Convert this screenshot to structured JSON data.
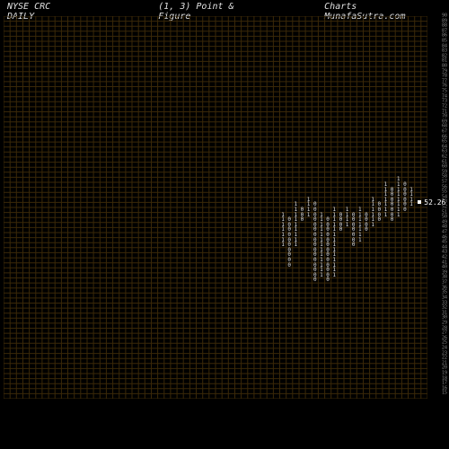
{
  "header": {
    "left": "NYSE CRC DAILY",
    "mid": "(1, 3) Point & Figure",
    "right": "Charts MunafaSutra.com"
  },
  "chart": {
    "type": "point-and-figure",
    "background_color": "#000000",
    "grid_color": "#3a2808",
    "text_color": "#e0e0e0",
    "axis_text_color": "#888888",
    "font_family": "monospace",
    "grid": {
      "cols": 66,
      "rows": 76,
      "cell_w": 7.1,
      "cell_h": 5.5
    },
    "yaxis": {
      "max": 90,
      "min": 15,
      "step": 1
    },
    "last_price": {
      "value": "52.26",
      "row": 37
    },
    "columns": [
      {
        "c": 43,
        "sym": "1",
        "from": 39,
        "to": 45
      },
      {
        "c": 44,
        "sym": "0",
        "from": 40,
        "to": 49
      },
      {
        "c": 45,
        "sym": "1",
        "from": 37,
        "to": 45
      },
      {
        "c": 46,
        "sym": "0",
        "from": 38,
        "to": 40
      },
      {
        "c": 47,
        "sym": "1",
        "from": 36,
        "to": 39
      },
      {
        "c": 48,
        "sym": "0",
        "from": 37,
        "to": 52
      },
      {
        "c": 49,
        "sym": "1",
        "from": 39,
        "to": 51
      },
      {
        "c": 50,
        "sym": "0",
        "from": 40,
        "to": 52
      },
      {
        "c": 51,
        "sym": "1",
        "from": 38,
        "to": 51
      },
      {
        "c": 52,
        "sym": "0",
        "from": 39,
        "to": 42
      },
      {
        "c": 53,
        "sym": "1",
        "from": 38,
        "to": 41
      },
      {
        "c": 54,
        "sym": "0",
        "from": 39,
        "to": 45
      },
      {
        "c": 55,
        "sym": "1",
        "from": 38,
        "to": 44
      },
      {
        "c": 56,
        "sym": "0",
        "from": 39,
        "to": 42
      },
      {
        "c": 57,
        "sym": "1",
        "from": 36,
        "to": 41
      },
      {
        "c": 58,
        "sym": "0",
        "from": 37,
        "to": 40
      },
      {
        "c": 59,
        "sym": "1",
        "from": 33,
        "to": 39
      },
      {
        "c": 60,
        "sym": "0",
        "from": 34,
        "to": 40
      },
      {
        "c": 61,
        "sym": "1",
        "from": 32,
        "to": 39
      },
      {
        "c": 62,
        "sym": "0",
        "from": 33,
        "to": 38
      },
      {
        "c": 63,
        "sym": "1",
        "from": 34,
        "to": 37
      }
    ]
  }
}
